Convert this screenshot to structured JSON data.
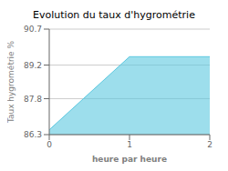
{
  "chart_data": {
    "type": "area",
    "title": "Evolution du taux d'hygrométrie",
    "xlabel": "heure par heure",
    "ylabel": "Taux hygrométrie %",
    "x": [
      0,
      1,
      2
    ],
    "values": [
      86.5,
      89.55,
      89.55
    ],
    "color": "#5bc8e0",
    "xlim": [
      0,
      2
    ],
    "ylim": [
      86.3,
      90.7
    ],
    "xticks": [
      0,
      1,
      2
    ],
    "yticks": [
      86.3,
      87.8,
      89.2,
      90.7
    ],
    "grid": "y"
  }
}
